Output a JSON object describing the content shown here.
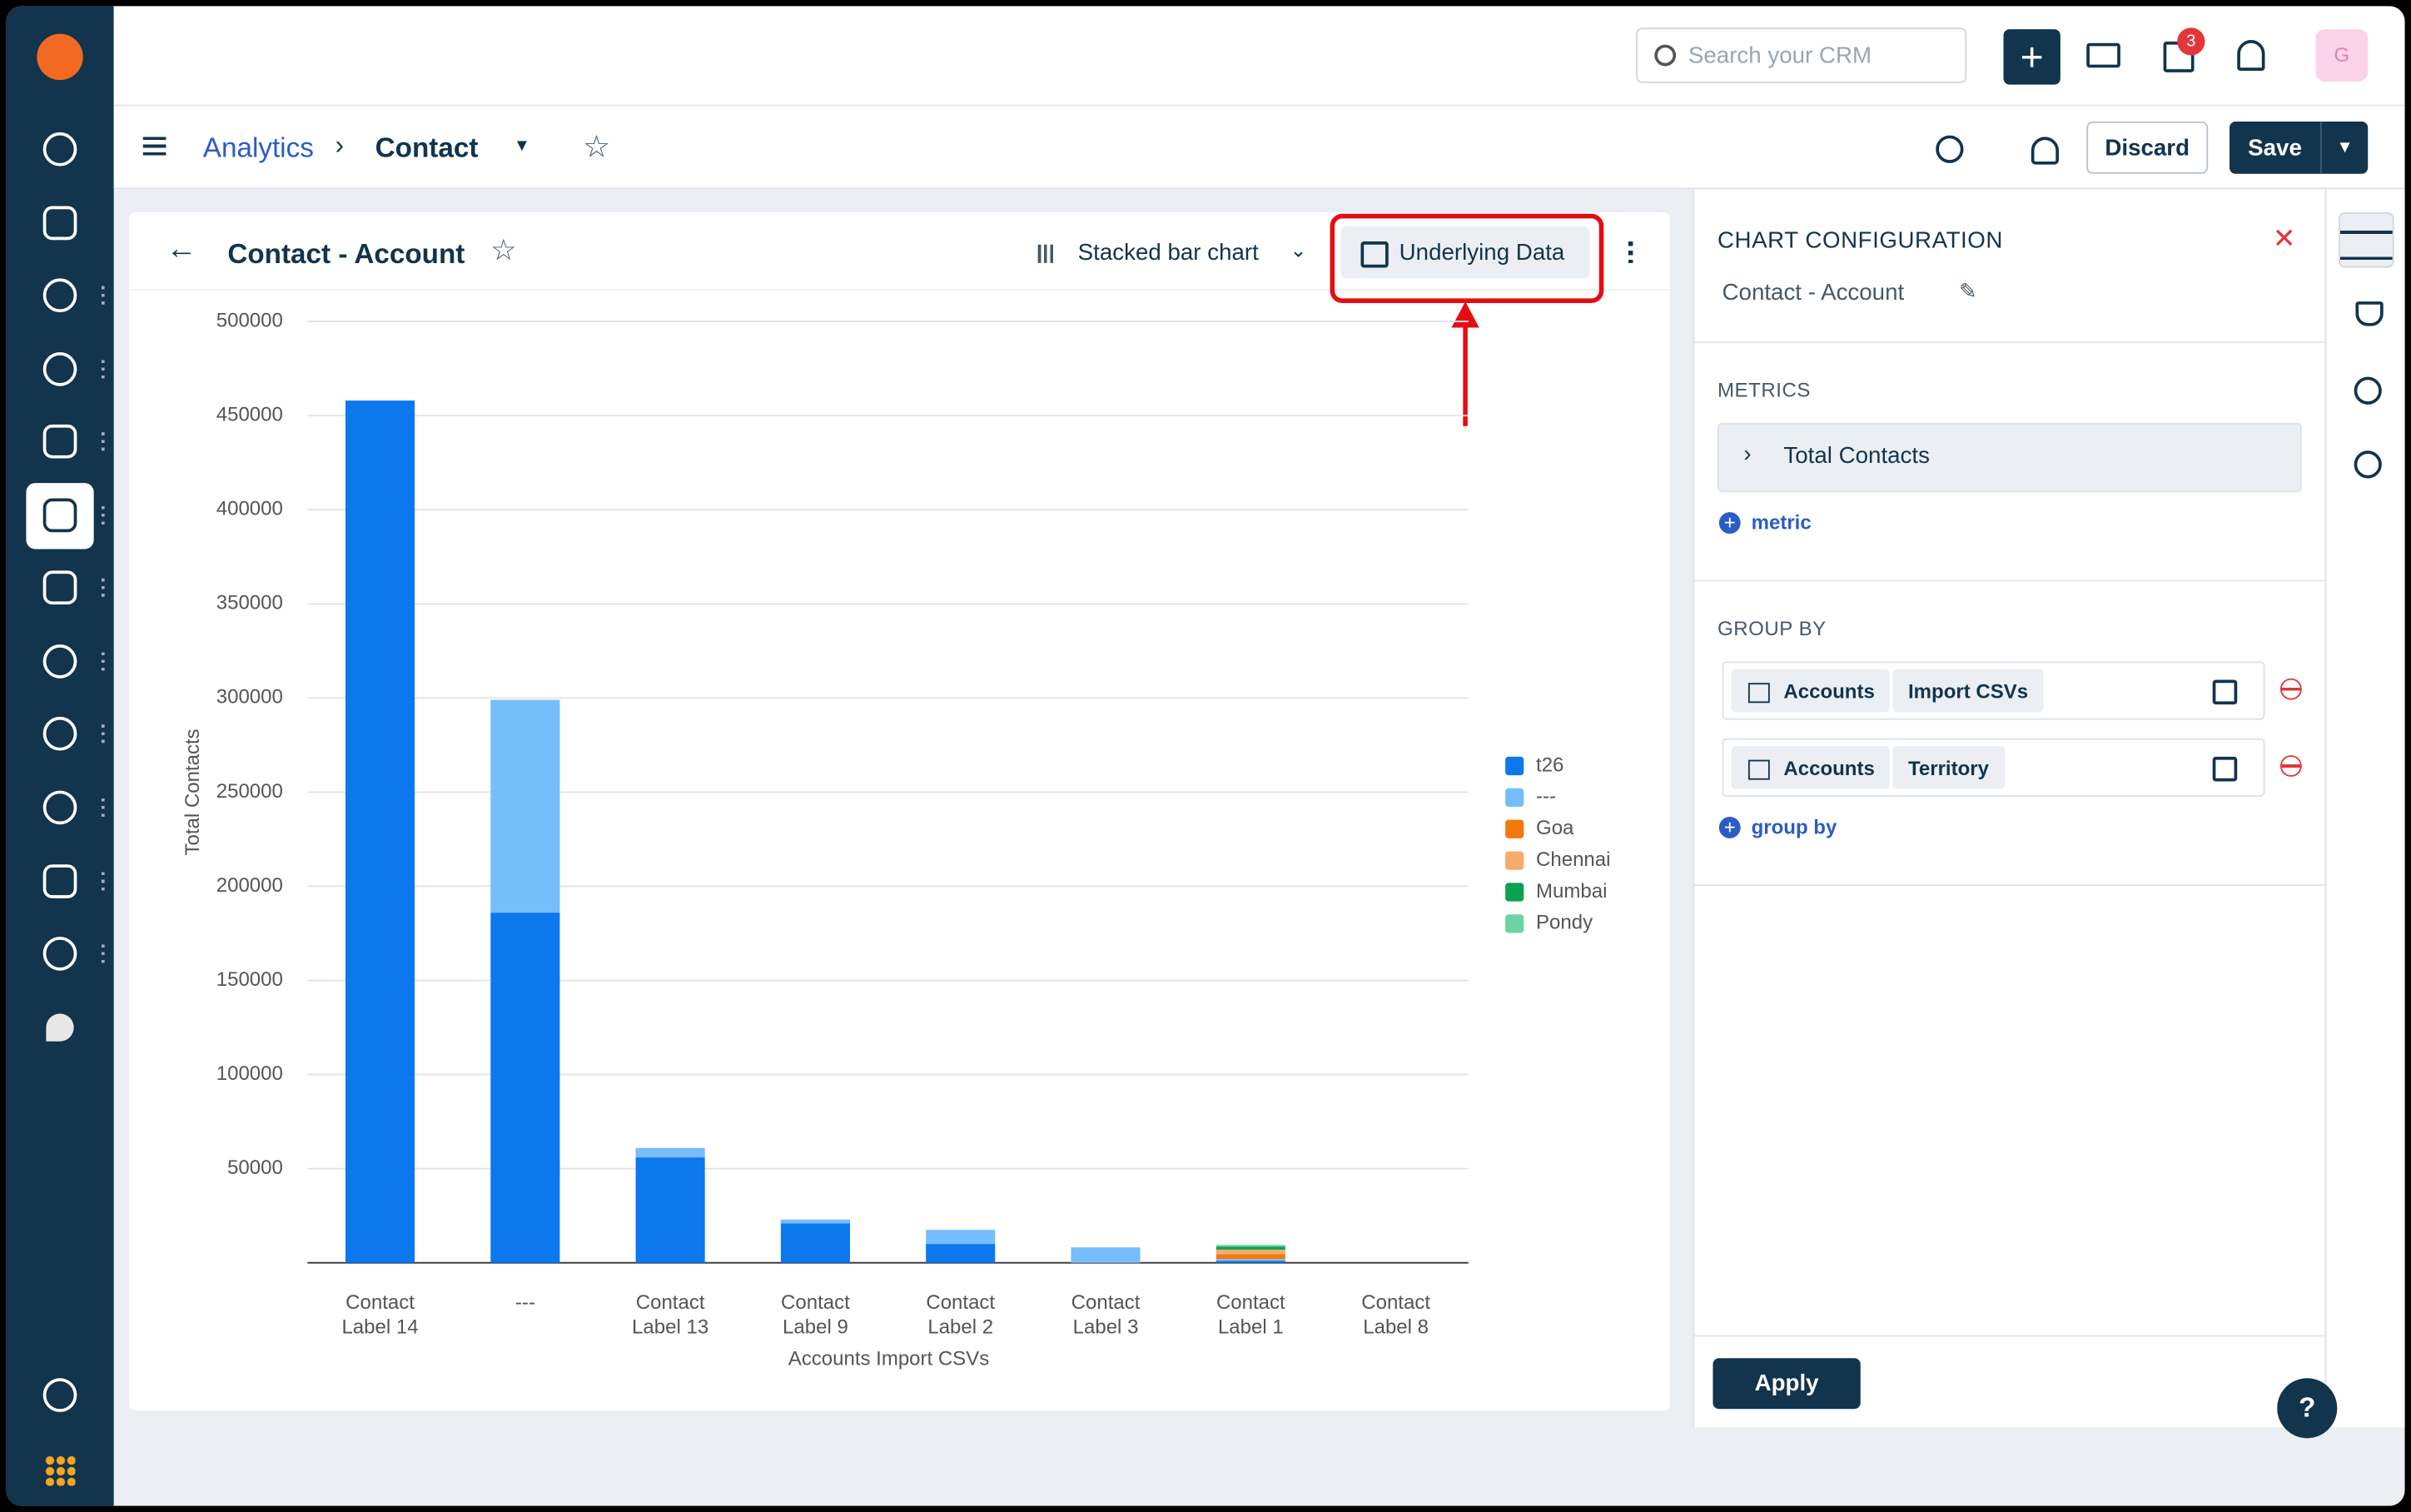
{
  "header": {
    "search_placeholder": "Search your CRM",
    "badge": "3",
    "avatar": "G"
  },
  "breadcrumb": {
    "parent": "Analytics",
    "current": "Contact"
  },
  "actions": {
    "discard": "Discard",
    "save": "Save"
  },
  "card": {
    "title": "Contact - Account",
    "chart_type": "Stacked bar chart",
    "underlying_data": "Underlying Data"
  },
  "config": {
    "title": "CHART CONFIGURATION",
    "name": "Contact - Account",
    "metrics_label": "METRICS",
    "metric": "Total Contacts",
    "add_metric": "metric",
    "group_by_label": "GROUP BY",
    "group_by": [
      [
        "Accounts",
        "Import CSVs"
      ],
      [
        "Accounts",
        "Territory"
      ]
    ],
    "add_group_by": "group by",
    "apply": "Apply"
  },
  "help": "?",
  "chart_data": {
    "type": "bar",
    "stacked": true,
    "x_label": "Accounts Import CSVs",
    "y_label": "Total Contacts",
    "categories": [
      "Contact Label 14",
      "---",
      "Contact Label 13",
      "Contact Label 9",
      "Contact Label 2",
      "Contact Label 3",
      "Contact Label 1",
      "Contact Label 8"
    ],
    "series": [
      {
        "name": "t26",
        "color": "#0b78ee",
        "values": [
          458000,
          186000,
          56000,
          21000,
          10000,
          0,
          1000,
          0
        ]
      },
      {
        "name": "---",
        "color": "#76bdfb",
        "values": [
          0,
          113000,
          5000,
          2000,
          7500,
          8200,
          1000,
          0
        ]
      },
      {
        "name": "Goa",
        "color": "#f5780f",
        "values": [
          0,
          0,
          0,
          0,
          0,
          0,
          2500,
          0
        ]
      },
      {
        "name": "Chennai",
        "color": "#f8ab6d",
        "values": [
          0,
          0,
          0,
          0,
          0,
          0,
          2500,
          0
        ]
      },
      {
        "name": "Mumbai",
        "color": "#0aa24f",
        "values": [
          0,
          0,
          0,
          0,
          0,
          0,
          1500,
          0
        ]
      },
      {
        "name": "Pondy",
        "color": "#6bd3a4",
        "values": [
          0,
          0,
          0,
          0,
          0,
          0,
          1000,
          0
        ]
      }
    ],
    "ylim": [
      0,
      500000
    ],
    "yticks": [
      50000,
      100000,
      150000,
      200000,
      250000,
      300000,
      350000,
      400000,
      450000,
      500000
    ],
    "grid": true,
    "legend": "right"
  }
}
